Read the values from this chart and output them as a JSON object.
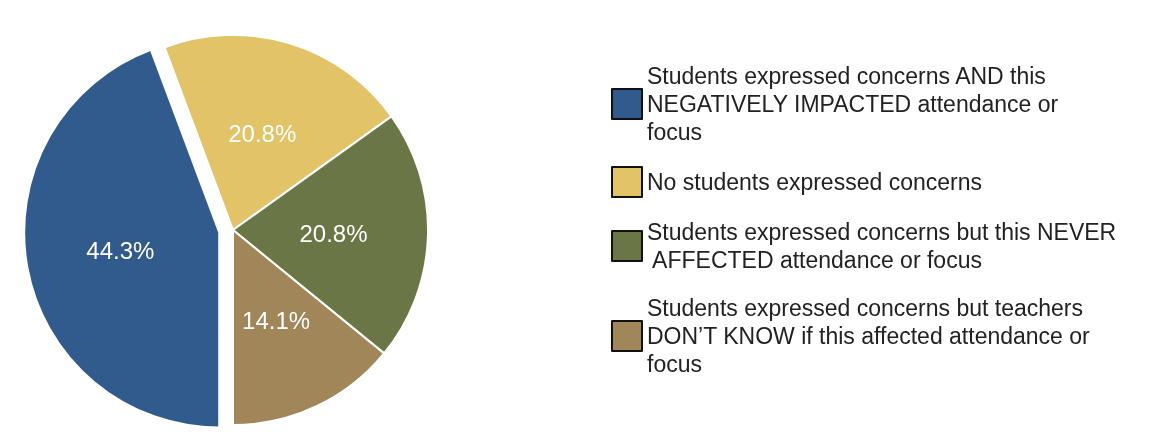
{
  "chart_data": {
    "type": "pie",
    "categories": [
      "Students expressed concerns AND this NEGATIVELY IMPACTED attendance or focus",
      "No students expressed concerns",
      "Students expressed concerns but this NEVER AFFECTED attendance or focus",
      "Students expressed concerns but teachers DON’T KNOW if this affected attendance or focus"
    ],
    "values": [
      44.3,
      20.8,
      20.8,
      14.1
    ],
    "colors": [
      "#315b8c",
      "#e2c367",
      "#6a7645",
      "#a08658"
    ],
    "value_labels": [
      "44.3%",
      "20.8%",
      "20.8%",
      "14.1%"
    ],
    "legend": "right"
  }
}
